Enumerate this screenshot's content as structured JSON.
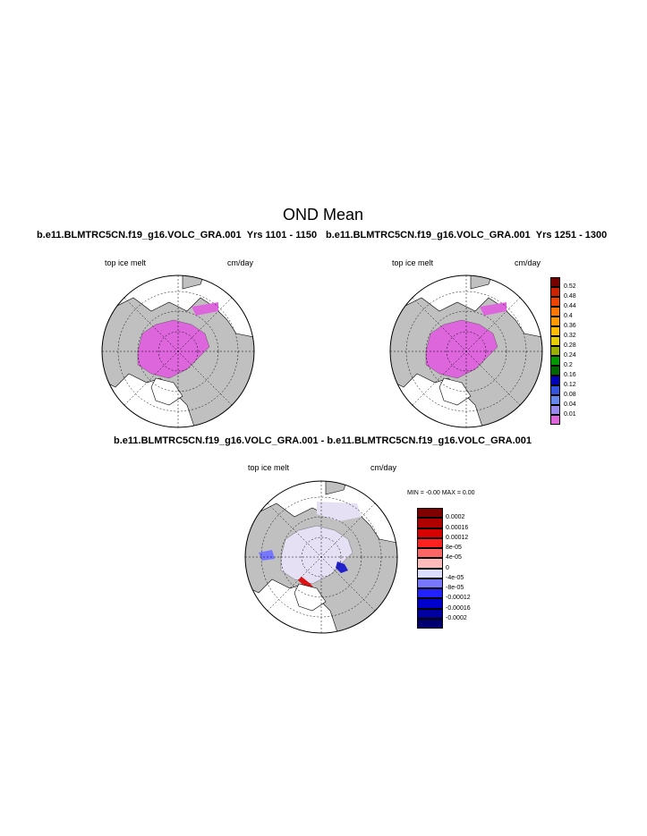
{
  "figure": {
    "title": "OND Mean",
    "panel1": {
      "case": "b.e11.BLMTRC5CN.f19_g16.VOLC_GRA.001",
      "years": "Yrs 1101 - 1150",
      "variable": "top ice melt",
      "units": "cm/day"
    },
    "panel2": {
      "case": "b.e11.BLMTRC5CN.f19_g16.VOLC_GRA.001",
      "years": "Yrs 1251 - 1300",
      "variable": "top ice melt",
      "units": "cm/day"
    },
    "panel3": {
      "title": "b.e11.BLMTRC5CN.f19_g16.VOLC_GRA.001 - b.e11.BLMTRC5CN.f19_g16.VOLC_GRA.001",
      "variable": "top ice melt",
      "units": "cm/day",
      "minmax": "MIN =  -0.00 MAX =   0.00"
    }
  },
  "colorbar_main": {
    "labels": [
      "0.52",
      "0.48",
      "0.44",
      "0.4",
      "0.36",
      "0.32",
      "0.28",
      "0.24",
      "0.2",
      "0.16",
      "0.12",
      "0.08",
      "0.04",
      "0.01"
    ],
    "colors": [
      "#7a0000",
      "#cc2200",
      "#ee4400",
      "#ff7700",
      "#ff9900",
      "#ffbb00",
      "#e6cc00",
      "#99b000",
      "#009900",
      "#006600",
      "#0000bb",
      "#3355dd",
      "#6688ee",
      "#9988ee",
      "#dd66dd"
    ]
  },
  "colorbar_diff": {
    "labels": [
      "0.0002",
      "0.00016",
      "0.00012",
      "8e-05",
      "4e-05",
      "0",
      "-4e-05",
      "-8e-05",
      "-0.00012",
      "-0.00016",
      "-0.0002"
    ],
    "colors": [
      "#800000",
      "#b00000",
      "#d80000",
      "#ff2020",
      "#ff6666",
      "#ffbbbb",
      "#ddddff",
      "#7777ff",
      "#2222ff",
      "#0000cc",
      "#0000a0",
      "#000070"
    ]
  },
  "map_colors": {
    "land": "#c0c0c0",
    "ice_melt": "#dd66dd",
    "diff_background": "#e6e0f4"
  }
}
